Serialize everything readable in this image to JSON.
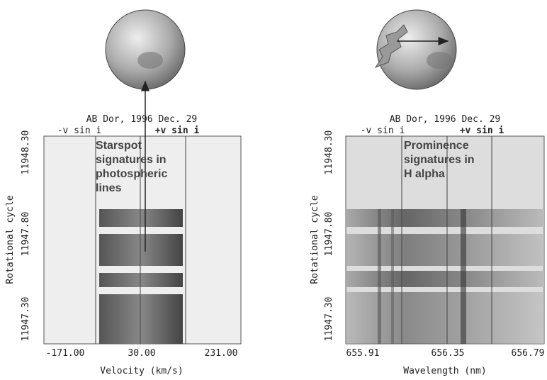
{
  "panels": [
    {
      "title": "AB Dor, 1996 Dec. 29",
      "minus_label": "-v sin i",
      "plus_label": "+v sin i",
      "annotation": [
        "Starspot",
        "signatures in",
        "photospheric",
        "lines"
      ],
      "y_label": "Rotational cycle",
      "y_ticks": [
        "11948.30",
        "11947.80",
        "11947.30"
      ],
      "x_ticks": [
        "-171.00",
        "30.00",
        "231.00"
      ],
      "x_label": "Velocity (km/s)"
    },
    {
      "title": "AB Dor, 1996 Dec. 29",
      "minus_label": "-v sin i",
      "plus_label": "+v sin i",
      "annotation": [
        "Prominence",
        "signatures in",
        "H alpha"
      ],
      "y_label": "Rotational cycle",
      "y_ticks": [
        "11948.30",
        "11947.80",
        "11947.30"
      ],
      "x_ticks": [
        "655.91",
        "656.35",
        "656.79"
      ],
      "x_label": "Wavelength (nm)"
    }
  ]
}
